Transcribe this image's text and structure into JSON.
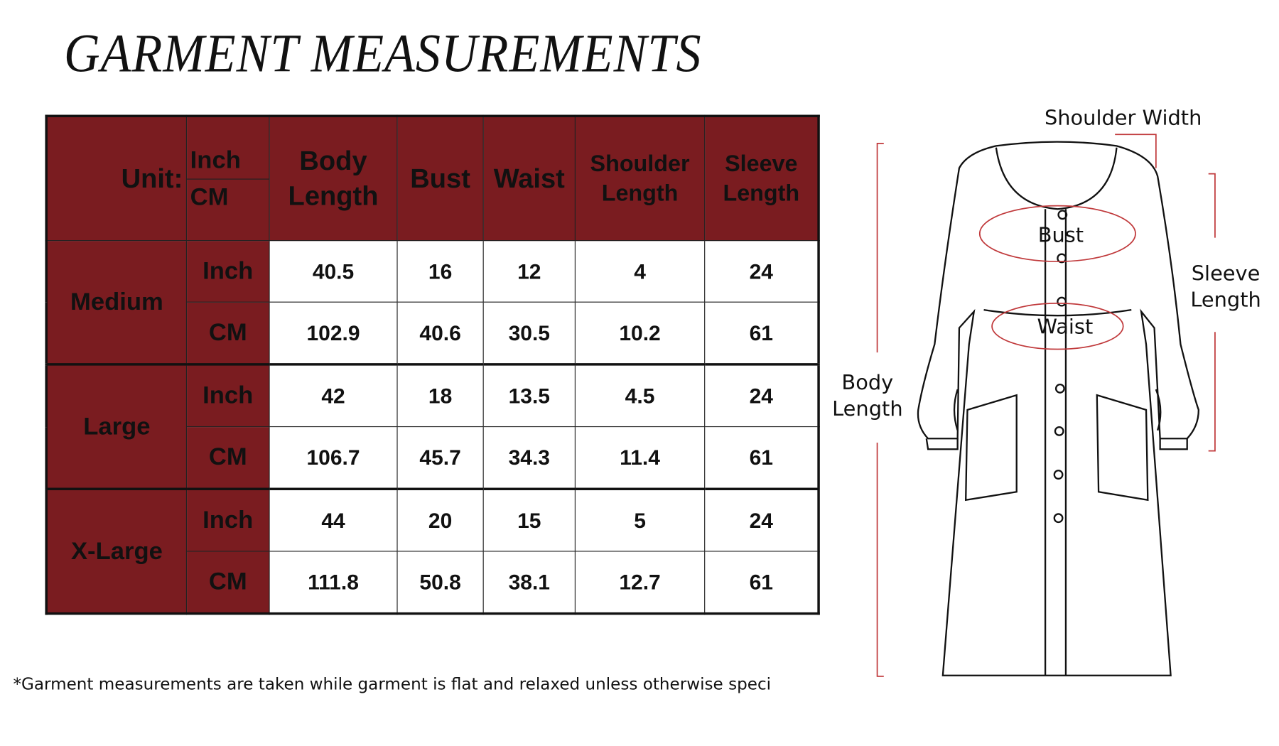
{
  "title": "GARMENT MEASUREMENTS",
  "table": {
    "unit_label": "Unit:",
    "unit_options": [
      "Inch",
      "CM"
    ],
    "columns": [
      [
        "Body",
        "Length"
      ],
      [
        "Bust"
      ],
      [
        "Waist"
      ],
      [
        "Shoulder",
        "Length"
      ],
      [
        "Sleeve",
        "Length"
      ]
    ],
    "sizes": [
      {
        "name": "Medium",
        "rows": [
          {
            "unit": "Inch",
            "values": [
              "40.5",
              "16",
              "12",
              "4",
              "24"
            ]
          },
          {
            "unit": "CM",
            "values": [
              "102.9",
              "40.6",
              "30.5",
              "10.2",
              "61"
            ]
          }
        ]
      },
      {
        "name": "Large",
        "rows": [
          {
            "unit": "Inch",
            "values": [
              "42",
              "18",
              "13.5",
              "4.5",
              "24"
            ]
          },
          {
            "unit": "CM",
            "values": [
              "106.7",
              "45.7",
              "34.3",
              "11.4",
              "61"
            ]
          }
        ]
      },
      {
        "name": "X-Large",
        "rows": [
          {
            "unit": "Inch",
            "values": [
              "44",
              "20",
              "15",
              "5",
              "24"
            ]
          },
          {
            "unit": "CM",
            "values": [
              "111.8",
              "50.8",
              "38.1",
              "12.7",
              "61"
            ]
          }
        ]
      }
    ]
  },
  "footnote": "*Garment measurements are taken while garment is flat and relaxed unless otherwise speci",
  "diagram": {
    "shoulder_width": "Shoulder Width",
    "bust": "Bust",
    "waist": "Waist",
    "sleeve_length": [
      "Sleeve",
      "Length"
    ],
    "body_length": [
      "Body",
      "Length"
    ]
  },
  "colors": {
    "header_bg": "#7a1c20",
    "measure_line": "#c0393b"
  }
}
